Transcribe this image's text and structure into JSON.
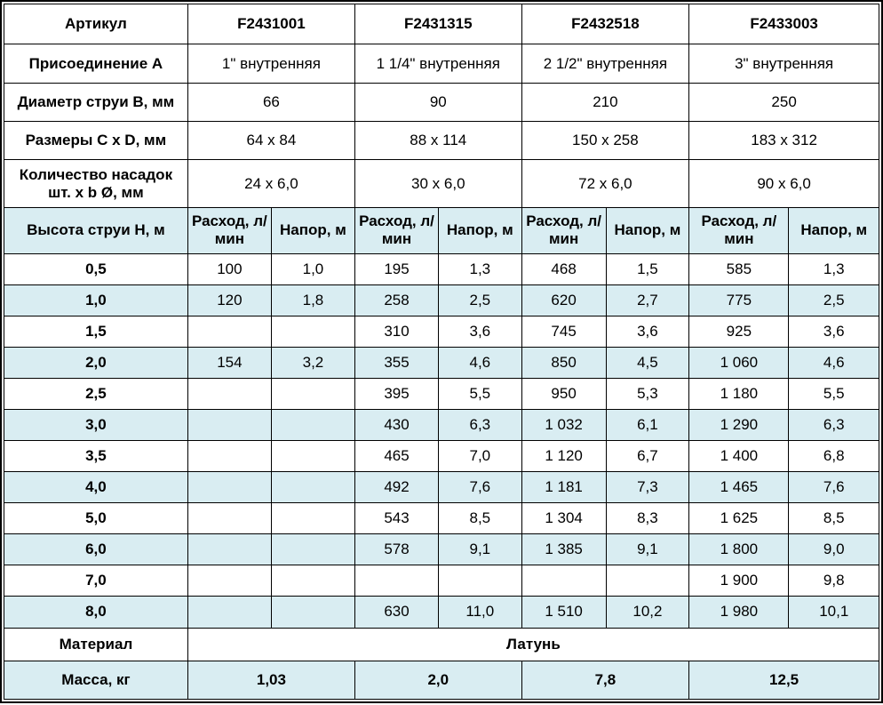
{
  "colors": {
    "band_blue": "#d9edf2",
    "article_blue": "#0b45ad",
    "border": "#000000"
  },
  "table": {
    "spec_rows": [
      {
        "label": "Артикул",
        "values": [
          "F2431001",
          "F2431315",
          "F2432518",
          "F2433003"
        ]
      },
      {
        "label": "Присоединение A",
        "values": [
          "1\" внутренняя",
          "1 1/4\" внутренняя",
          "2 1/2\" внутренняя",
          "3\" внутренняя"
        ]
      },
      {
        "label": "Диаметр струи B, мм",
        "values": [
          "66",
          "90",
          "210",
          "250"
        ]
      },
      {
        "label": "Размеры C x D, мм",
        "values": [
          "64 x 84",
          "88 x 114",
          "150 x 258",
          "183 x 312"
        ]
      },
      {
        "label": "Количество насадок шт. x b Ø, мм",
        "values": [
          "24 x 6,0",
          "30 x 6,0",
          "72 x 6,0",
          "90 x 6,0"
        ]
      }
    ],
    "flow_header": {
      "label": "Высота струи H, м",
      "flow": "Расход, л/мин",
      "head": "Напор, м"
    },
    "flow_rows": [
      {
        "h": "0,5",
        "cells": [
          "100",
          "1,0",
          "195",
          "1,3",
          "468",
          "1,5",
          "585",
          "1,3"
        ]
      },
      {
        "h": "1,0",
        "cells": [
          "120",
          "1,8",
          "258",
          "2,5",
          "620",
          "2,7",
          "775",
          "2,5"
        ]
      },
      {
        "h": "1,5",
        "cells": [
          "",
          "",
          "310",
          "3,6",
          "745",
          "3,6",
          "925",
          "3,6"
        ]
      },
      {
        "h": "2,0",
        "cells": [
          "154",
          "3,2",
          "355",
          "4,6",
          "850",
          "4,5",
          "1 060",
          "4,6"
        ]
      },
      {
        "h": "2,5",
        "cells": [
          "",
          "",
          "395",
          "5,5",
          "950",
          "5,3",
          "1 180",
          "5,5"
        ]
      },
      {
        "h": "3,0",
        "cells": [
          "",
          "",
          "430",
          "6,3",
          "1 032",
          "6,1",
          "1 290",
          "6,3"
        ]
      },
      {
        "h": "3,5",
        "cells": [
          "",
          "",
          "465",
          "7,0",
          "1 120",
          "6,7",
          "1 400",
          "6,8"
        ]
      },
      {
        "h": "4,0",
        "cells": [
          "",
          "",
          "492",
          "7,6",
          "1 181",
          "7,3",
          "1 465",
          "7,6"
        ]
      },
      {
        "h": "5,0",
        "cells": [
          "",
          "",
          "543",
          "8,5",
          "1 304",
          "8,3",
          "1 625",
          "8,5"
        ]
      },
      {
        "h": "6,0",
        "cells": [
          "",
          "",
          "578",
          "9,1",
          "1 385",
          "9,1",
          "1 800",
          "9,0"
        ]
      },
      {
        "h": "7,0",
        "cells": [
          "",
          "",
          "",
          "",
          "",
          "",
          "1 900",
          "9,8"
        ]
      },
      {
        "h": "8,0",
        "cells": [
          "",
          "",
          "630",
          "11,0",
          "1 510",
          "10,2",
          "1 980",
          "10,1"
        ]
      }
    ],
    "material_row": {
      "label": "Материал",
      "value": "Латунь"
    },
    "mass_row": {
      "label": "Масса, кг",
      "values": [
        "1,03",
        "2,0",
        "7,8",
        "12,5"
      ]
    }
  }
}
